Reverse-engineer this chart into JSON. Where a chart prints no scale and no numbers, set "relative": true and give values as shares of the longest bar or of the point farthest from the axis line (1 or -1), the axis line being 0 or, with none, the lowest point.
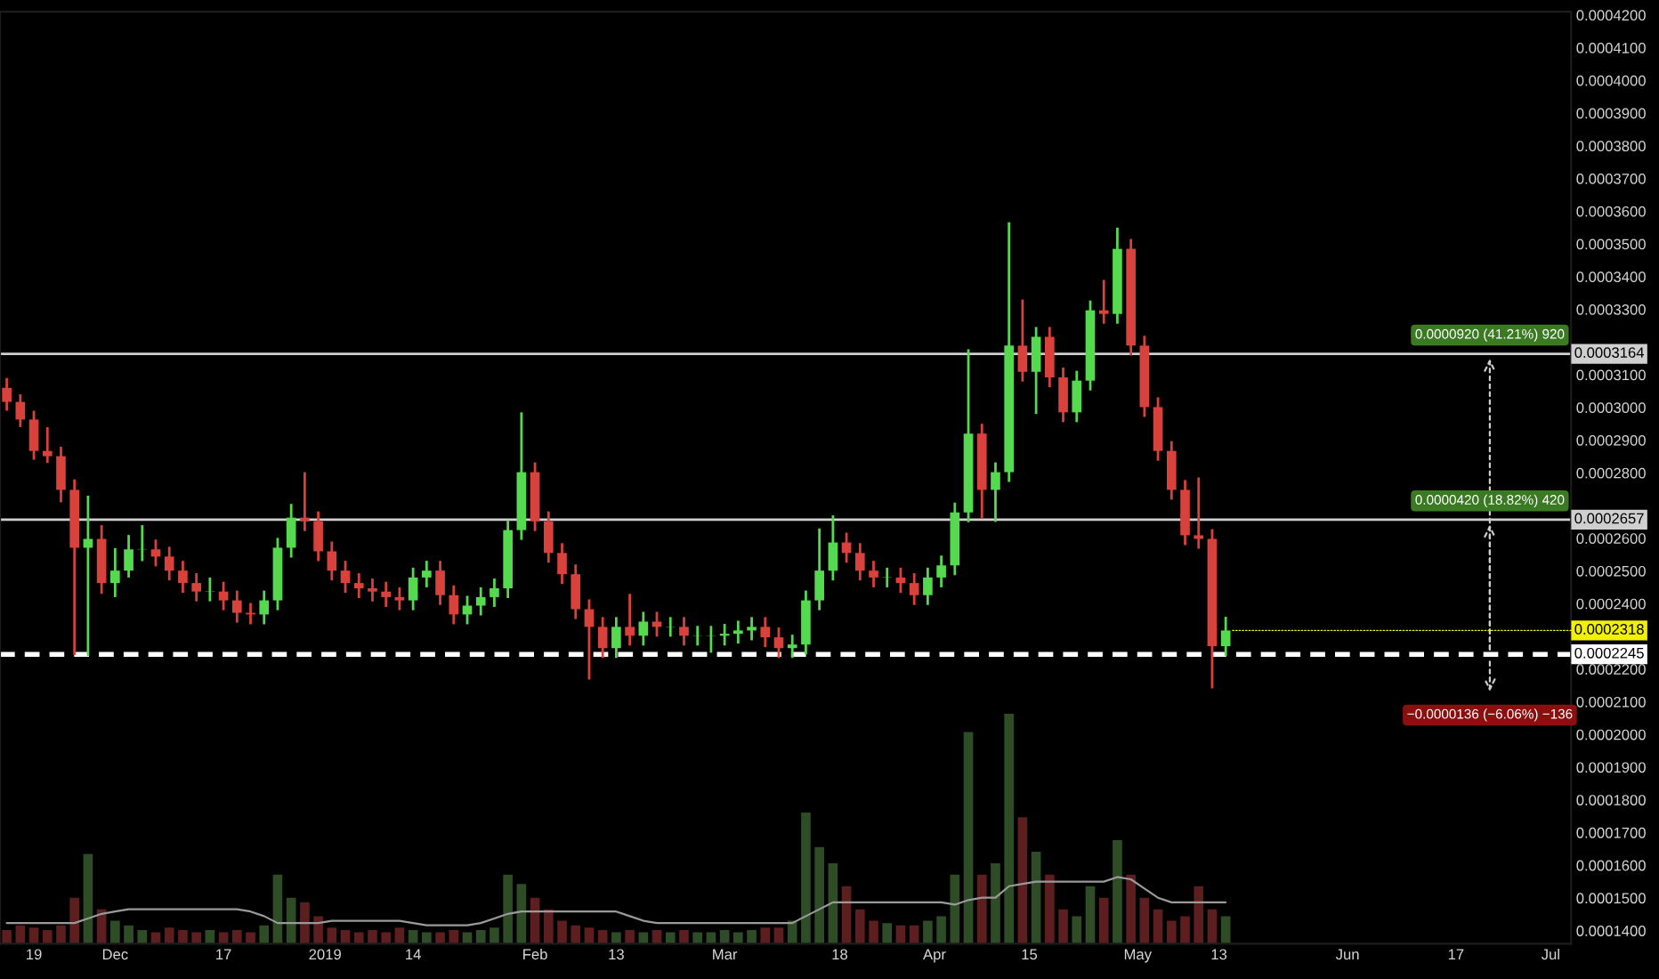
{
  "chart_data": [
    {
      "type": "candlestick",
      "x": [
        "2018-11-15",
        "2018-11-17",
        "2018-11-19",
        "2018-11-21",
        "2018-11-23",
        "2018-11-25",
        "2018-11-27",
        "2018-11-29",
        "2018-12-01",
        "2018-12-03",
        "2018-12-05",
        "2018-12-07",
        "2018-12-09",
        "2018-12-11",
        "2018-12-13",
        "2018-12-15",
        "2018-12-17",
        "2018-12-19",
        "2018-12-21",
        "2018-12-23",
        "2018-12-25",
        "2018-12-27",
        "2018-12-29",
        "2018-12-31",
        "2019-01-02",
        "2019-01-04",
        "2019-01-06",
        "2019-01-08",
        "2019-01-10",
        "2019-01-12",
        "2019-01-14",
        "2019-01-16",
        "2019-01-18",
        "2019-01-20",
        "2019-01-22",
        "2019-01-24",
        "2019-01-26",
        "2019-01-28",
        "2019-01-30",
        "2019-02-01",
        "2019-02-03",
        "2019-02-05",
        "2019-02-07",
        "2019-02-09",
        "2019-02-11",
        "2019-02-13",
        "2019-02-15",
        "2019-02-17",
        "2019-02-19",
        "2019-02-21",
        "2019-02-23",
        "2019-02-25",
        "2019-02-27",
        "2019-03-01",
        "2019-03-03",
        "2019-03-05",
        "2019-03-07",
        "2019-03-09",
        "2019-03-11",
        "2019-03-13",
        "2019-03-15",
        "2019-03-17",
        "2019-03-19",
        "2019-03-21",
        "2019-03-23",
        "2019-03-25",
        "2019-03-27",
        "2019-03-29",
        "2019-03-31",
        "2019-04-02",
        "2019-04-04",
        "2019-04-06",
        "2019-04-08",
        "2019-04-10",
        "2019-04-12",
        "2019-04-14",
        "2019-04-16",
        "2019-04-18",
        "2019-04-20",
        "2019-04-22",
        "2019-04-24",
        "2019-04-26",
        "2019-04-28",
        "2019-04-30",
        "2019-05-02",
        "2019-05-04",
        "2019-05-06",
        "2019-05-08",
        "2019-05-10",
        "2019-05-12",
        "2019-05-14"
      ],
      "ohlc": [
        [
          0.000306,
          0.000309,
          0.000299,
          0.0003017
        ],
        [
          0.0003017,
          0.000304,
          0.000294,
          0.0002963
        ],
        [
          0.0002963,
          0.000299,
          0.000284,
          0.0002867
        ],
        [
          0.0002867,
          0.000294,
          0.000283,
          0.0002851
        ],
        [
          0.0002851,
          0.000288,
          0.000271,
          0.0002748
        ],
        [
          0.0002748,
          0.000278,
          0.0002243,
          0.0002571
        ],
        [
          0.0002571,
          0.000273,
          0.000224,
          0.0002598
        ],
        [
          0.0002598,
          0.000264,
          0.000243,
          0.0002463
        ],
        [
          0.0002463,
          0.000257,
          0.000242,
          0.0002501
        ],
        [
          0.0002501,
          0.000261,
          0.000248,
          0.0002566
        ],
        [
          0.0002566,
          0.000264,
          0.000253,
          0.0002566
        ],
        [
          0.0002566,
          0.0002596,
          0.0002514,
          0.0002544
        ],
        [
          0.0002544,
          0.0002574,
          0.0002471,
          0.0002501
        ],
        [
          0.0002501,
          0.0002531,
          0.0002433,
          0.0002463
        ],
        [
          0.0002463,
          0.0002493,
          0.0002407,
          0.0002437
        ],
        [
          0.0002437,
          0.000248,
          0.0002407,
          0.0002437
        ],
        [
          0.0002437,
          0.0002467,
          0.000238,
          0.000241
        ],
        [
          0.000241,
          0.000244,
          0.0002342,
          0.0002372
        ],
        [
          0.0002372,
          0.0002402,
          0.0002337,
          0.0002367
        ],
        [
          0.0002367,
          0.000244,
          0.0002337,
          0.000241
        ],
        [
          0.000241,
          0.0002601,
          0.000238,
          0.0002571
        ],
        [
          0.0002571,
          0.0002705,
          0.0002541,
          0.0002663
        ],
        [
          0.0002663,
          0.0002802,
          0.0002622,
          0.0002652
        ],
        [
          0.0002652,
          0.0002682,
          0.000253,
          0.000256
        ],
        [
          0.000256,
          0.000259,
          0.0002471,
          0.0002501
        ],
        [
          0.0002501,
          0.0002531,
          0.0002433,
          0.0002463
        ],
        [
          0.0002463,
          0.0002493,
          0.0002417,
          0.0002447
        ],
        [
          0.0002447,
          0.0002477,
          0.0002407,
          0.0002437
        ],
        [
          0.0002437,
          0.0002467,
          0.000239,
          0.000242
        ],
        [
          0.000242,
          0.000245,
          0.000238,
          0.000241
        ],
        [
          0.000241,
          0.000251,
          0.000238,
          0.000248
        ],
        [
          0.000248,
          0.0002531,
          0.000245,
          0.0002501
        ],
        [
          0.0002501,
          0.0002531,
          0.0002396,
          0.0002426
        ],
        [
          0.0002426,
          0.0002456,
          0.0002337,
          0.0002367
        ],
        [
          0.0002367,
          0.0002424,
          0.0002337,
          0.0002394
        ],
        [
          0.0002394,
          0.000245,
          0.0002364,
          0.000242
        ],
        [
          0.000242,
          0.0002477,
          0.000239,
          0.0002447
        ],
        [
          0.0002447,
          0.0002655,
          0.0002417,
          0.0002625
        ],
        [
          0.0002625,
          0.0002985,
          0.0002595,
          0.0002802
        ],
        [
          0.0002802,
          0.0002832,
          0.0002622,
          0.0002652
        ],
        [
          0.0002652,
          0.0002682,
          0.0002525,
          0.0002555
        ],
        [
          0.0002555,
          0.0002585,
          0.000246,
          0.000249
        ],
        [
          0.000249,
          0.000252,
          0.0002353,
          0.0002383
        ],
        [
          0.0002383,
          0.0002413,
          0.0002168,
          0.0002329
        ],
        [
          0.0002329,
          0.0002359,
          0.0002234,
          0.0002264
        ],
        [
          0.0002264,
          0.0002359,
          0.0002234,
          0.0002329
        ],
        [
          0.0002329,
          0.000243,
          0.0002272,
          0.0002302
        ],
        [
          0.0002302,
          0.0002375,
          0.0002272,
          0.0002345
        ],
        [
          0.0002345,
          0.0002375,
          0.0002299,
          0.0002329
        ],
        [
          0.0002329,
          0.0002359,
          0.0002299,
          0.0002329
        ],
        [
          0.0002329,
          0.0002359,
          0.0002272,
          0.0002302
        ],
        [
          0.0002302,
          0.0002332,
          0.0002272,
          0.0002302
        ],
        [
          0.0002302,
          0.0002332,
          0.000225,
          0.0002302
        ],
        [
          0.0002302,
          0.0002338,
          0.0002272,
          0.0002308
        ],
        [
          0.0002308,
          0.0002348,
          0.0002278,
          0.0002318
        ],
        [
          0.0002318,
          0.0002359,
          0.0002288,
          0.0002329
        ],
        [
          0.0002329,
          0.0002359,
          0.0002267,
          0.0002297
        ],
        [
          0.0002297,
          0.0002327,
          0.0002234,
          0.0002264
        ],
        [
          0.0002264,
          0.0002305,
          0.0002234,
          0.0002275
        ],
        [
          0.0002275,
          0.000244,
          0.0002245,
          0.000241
        ],
        [
          0.000241,
          0.000263,
          0.000238,
          0.0002501
        ],
        [
          0.0002501,
          0.000267,
          0.0002471,
          0.0002587
        ],
        [
          0.0002587,
          0.0002617,
          0.0002525,
          0.0002555
        ],
        [
          0.0002555,
          0.0002585,
          0.0002471,
          0.0002501
        ],
        [
          0.0002501,
          0.0002531,
          0.000245,
          0.000248
        ],
        [
          0.000248,
          0.000251,
          0.000245,
          0.000248
        ],
        [
          0.000248,
          0.000251,
          0.0002433,
          0.0002463
        ],
        [
          0.0002463,
          0.0002493,
          0.0002396,
          0.0002426
        ],
        [
          0.0002426,
          0.000251,
          0.0002396,
          0.000248
        ],
        [
          0.000248,
          0.0002547,
          0.000245,
          0.0002517
        ],
        [
          0.0002517,
          0.0002709,
          0.0002487,
          0.0002679
        ],
        [
          0.0002679,
          0.0003178,
          0.0002649,
          0.000292
        ],
        [
          0.000292,
          0.000295,
          0.000266,
          0.0002748
        ],
        [
          0.0002748,
          0.0002832,
          0.000265,
          0.0002802
        ],
        [
          0.0002802,
          0.0003566,
          0.0002772,
          0.0003189
        ],
        [
          0.0003189,
          0.000333,
          0.0003079,
          0.0003109
        ],
        [
          0.0003109,
          0.0003246,
          0.000298,
          0.0003216
        ],
        [
          0.0003216,
          0.0003246,
          0.0003062,
          0.0003092
        ],
        [
          0.0003092,
          0.0003122,
          0.0002955,
          0.0002985
        ],
        [
          0.0002985,
          0.0003112,
          0.0002955,
          0.0003082
        ],
        [
          0.0003082,
          0.0003327,
          0.0003052,
          0.0003297
        ],
        [
          0.0003297,
          0.000339,
          0.0003256,
          0.0003286
        ],
        [
          0.0003286,
          0.000355,
          0.0003256,
          0.0003485
        ],
        [
          0.0003485,
          0.0003515,
          0.0003159,
          0.0003189
        ],
        [
          0.0003189,
          0.0003219,
          0.0002971,
          0.0003001
        ],
        [
          0.0003001,
          0.0003031,
          0.0002837,
          0.0002867
        ],
        [
          0.0002867,
          0.0002897,
          0.0002718,
          0.0002748
        ],
        [
          0.0002748,
          0.0002778,
          0.0002579,
          0.0002609
        ],
        [
          0.0002609,
          0.0002786,
          0.0002568,
          0.0002598
        ],
        [
          0.0002598,
          0.0002628,
          0.0002141,
          0.000227
        ],
        [
          0.000227,
          0.000236,
          0.000224,
          0.0002318
        ]
      ],
      "colors": [
        "#d9423c",
        "#d9423c",
        "#d9423c",
        "#d9423c",
        "#d9423c",
        "#d9423c",
        "#55d94f",
        "#d9423c",
        "#55d94f",
        "#55d94f",
        "#55d94f",
        "#d9423c",
        "#d9423c",
        "#d9423c",
        "#d9423c",
        "#55d94f",
        "#d9423c",
        "#d9423c",
        "#d9423c",
        "#55d94f",
        "#55d94f",
        "#55d94f",
        "#d9423c",
        "#d9423c",
        "#d9423c",
        "#d9423c",
        "#d9423c",
        "#d9423c",
        "#d9423c",
        "#d9423c",
        "#55d94f",
        "#55d94f",
        "#d9423c",
        "#d9423c",
        "#55d94f",
        "#55d94f",
        "#55d94f",
        "#55d94f",
        "#55d94f",
        "#d9423c",
        "#d9423c",
        "#d9423c",
        "#d9423c",
        "#d9423c",
        "#d9423c",
        "#55d94f",
        "#d9423c",
        "#55d94f",
        "#d9423c",
        "#55d94f",
        "#d9423c",
        "#55d94f",
        "#55d94f",
        "#55d94f",
        "#55d94f",
        "#55d94f",
        "#d9423c",
        "#d9423c",
        "#55d94f",
        "#55d94f",
        "#55d94f",
        "#55d94f",
        "#d9423c",
        "#d9423c",
        "#d9423c",
        "#55d94f",
        "#d9423c",
        "#d9423c",
        "#55d94f",
        "#55d94f",
        "#55d94f",
        "#55d94f",
        "#d9423c",
        "#55d94f",
        "#55d94f",
        "#d9423c",
        "#55d94f",
        "#d9423c",
        "#d9423c",
        "#55d94f",
        "#55d94f",
        "#d9423c",
        "#55d94f",
        "#d9423c",
        "#d9423c",
        "#d9423c",
        "#d9423c",
        "#d9423c",
        "#d9423c",
        "#d9423c",
        "#55d94f"
      ],
      "xlim": [
        "2018-11-14",
        "2019-07-04"
      ],
      "xticks": [
        {
          "value": "2018-11-19",
          "label": "19"
        },
        {
          "value": "2018-12-01",
          "label": "Dec"
        },
        {
          "value": "2018-12-17",
          "label": "17"
        },
        {
          "value": "2019-01-01",
          "label": "2019"
        },
        {
          "value": "2019-01-14",
          "label": "14"
        },
        {
          "value": "2019-02-01",
          "label": "Feb"
        },
        {
          "value": "2019-02-13",
          "label": "13"
        },
        {
          "value": "2019-03-01",
          "label": "Mar"
        },
        {
          "value": "2019-03-18",
          "label": "18"
        },
        {
          "value": "2019-04-01",
          "label": "Apr"
        },
        {
          "value": "2019-04-15",
          "label": "15"
        },
        {
          "value": "2019-05-01",
          "label": "May"
        },
        {
          "value": "2019-05-13",
          "label": "13"
        },
        {
          "value": "2019-06-01",
          "label": "Jun"
        },
        {
          "value": "2019-06-17",
          "label": "17"
        },
        {
          "value": "2019-07-01",
          "label": "Jul"
        }
      ],
      "ylim": [
        0.000136,
        0.000421
      ],
      "yticks": [
        {
          "value": 0.00014,
          "label": "0.0001400"
        },
        {
          "value": 0.00015,
          "label": "0.0001500"
        },
        {
          "value": 0.00016,
          "label": "0.0001600"
        },
        {
          "value": 0.00017,
          "label": "0.0001700"
        },
        {
          "value": 0.00018,
          "label": "0.0001800"
        },
        {
          "value": 0.00019,
          "label": "0.0001900"
        },
        {
          "value": 0.0002,
          "label": "0.0002000"
        },
        {
          "value": 0.00021,
          "label": "0.0002100"
        },
        {
          "value": 0.00022,
          "label": "0.0002200"
        },
        {
          "value": 0.00024,
          "label": "0.0002400"
        },
        {
          "value": 0.00025,
          "label": "0.0002500"
        },
        {
          "value": 0.00026,
          "label": "0.0002600"
        },
        {
          "value": 0.00028,
          "label": "0.0002800"
        },
        {
          "value": 0.00029,
          "label": "0.0002900"
        },
        {
          "value": 0.0003,
          "label": "0.0003000"
        },
        {
          "value": 0.00031,
          "label": "0.0003100"
        },
        {
          "value": 0.00033,
          "label": "0.0003300"
        },
        {
          "value": 0.00034,
          "label": "0.0003400"
        },
        {
          "value": 0.00035,
          "label": "0.0003500"
        },
        {
          "value": 0.00036,
          "label": "0.0003600"
        },
        {
          "value": 0.00037,
          "label": "0.0003700"
        },
        {
          "value": 0.00038,
          "label": "0.0003800"
        },
        {
          "value": 0.00039,
          "label": "0.0003900"
        },
        {
          "value": 0.0004,
          "label": "0.0004000"
        },
        {
          "value": 0.00041,
          "label": "0.0004100"
        },
        {
          "value": 0.00042,
          "label": "0.0004200"
        }
      ],
      "ref_lines": [
        {
          "axis": "y",
          "value": 0.0003164,
          "label": "0.0003164",
          "color": "#cfcfcf",
          "line_style": "solid"
        },
        {
          "axis": "y",
          "value": 0.0002657,
          "label": "0.0002657",
          "color": "#cfcfcf",
          "line_style": "solid"
        },
        {
          "axis": "y",
          "value": 0.0002245,
          "label": "0.0002245",
          "color": "#ffffff",
          "line_style": "dashed"
        }
      ],
      "annotations": [
        {
          "text": "0.0000920 (41.21%) 920",
          "x": "2019-06-22",
          "y": 0.0003164
        },
        {
          "text": "0.0000420 (18.82%) 420",
          "x": "2019-06-22",
          "y": 0.0002657
        },
        "−0.0000136 (−6.06%) −136",
        {
          "text": "0.0002318",
          "x": "2019-05-14",
          "y": 0.0002318
        }
      ],
      "grid": false
    },
    {
      "type": "bar",
      "relative": true,
      "tick_labels": false,
      "xlim": [
        "2018-11-14",
        "2019-07-04"
      ],
      "x": [
        "2018-11-15",
        "2018-11-17",
        "2018-11-19",
        "2018-11-21",
        "2018-11-23",
        "2018-11-25",
        "2018-11-27",
        "2018-11-29",
        "2018-12-01",
        "2018-12-03",
        "2018-12-05",
        "2018-12-07",
        "2018-12-09",
        "2018-12-11",
        "2018-12-13",
        "2018-12-15",
        "2018-12-17",
        "2018-12-19",
        "2018-12-21",
        "2018-12-23",
        "2018-12-25",
        "2018-12-27",
        "2018-12-29",
        "2018-12-31",
        "2019-01-02",
        "2019-01-04",
        "2019-01-06",
        "2019-01-08",
        "2019-01-10",
        "2019-01-12",
        "2019-01-14",
        "2019-01-16",
        "2019-01-18",
        "2019-01-20",
        "2019-01-22",
        "2019-01-24",
        "2019-01-26",
        "2019-01-28",
        "2019-01-30",
        "2019-02-01",
        "2019-02-03",
        "2019-02-05",
        "2019-02-07",
        "2019-02-09",
        "2019-02-11",
        "2019-02-13",
        "2019-02-15",
        "2019-02-17",
        "2019-02-19",
        "2019-02-21",
        "2019-02-23",
        "2019-02-25",
        "2019-02-27",
        "2019-03-01",
        "2019-03-03",
        "2019-03-05",
        "2019-03-07",
        "2019-03-09",
        "2019-03-11",
        "2019-03-13",
        "2019-03-15",
        "2019-03-17",
        "2019-03-19",
        "2019-03-21",
        "2019-03-23",
        "2019-03-25",
        "2019-03-27",
        "2019-03-29",
        "2019-03-31",
        "2019-04-02",
        "2019-04-04",
        "2019-04-06",
        "2019-04-08",
        "2019-04-10",
        "2019-04-12",
        "2019-04-14",
        "2019-04-16",
        "2019-04-18",
        "2019-04-20",
        "2019-04-22",
        "2019-04-24",
        "2019-04-26",
        "2019-04-28",
        "2019-04-30",
        "2019-05-02",
        "2019-05-04",
        "2019-05-06",
        "2019-05-08",
        "2019-05-10",
        "2019-05-12",
        "2019-05-14"
      ],
      "series": [
        {
          "type": "bar",
          "values": [
            0.06,
            0.08,
            0.07,
            0.06,
            0.08,
            0.2,
            0.39,
            0.15,
            0.1,
            0.08,
            0.06,
            0.05,
            0.07,
            0.06,
            0.05,
            0.06,
            0.05,
            0.06,
            0.05,
            0.08,
            0.3,
            0.2,
            0.18,
            0.12,
            0.07,
            0.06,
            0.05,
            0.06,
            0.05,
            0.07,
            0.06,
            0.05,
            0.05,
            0.06,
            0.05,
            0.06,
            0.07,
            0.3,
            0.26,
            0.2,
            0.15,
            0.1,
            0.08,
            0.07,
            0.06,
            0.05,
            0.06,
            0.05,
            0.06,
            0.05,
            0.06,
            0.05,
            0.05,
            0.06,
            0.05,
            0.06,
            0.07,
            0.07,
            0.1,
            0.57,
            0.42,
            0.35,
            0.25,
            0.15,
            0.1,
            0.09,
            0.08,
            0.08,
            0.1,
            0.12,
            0.3,
            0.92,
            0.3,
            0.35,
            1.0,
            0.55,
            0.4,
            0.3,
            0.15,
            0.12,
            0.25,
            0.2,
            0.45,
            0.3,
            0.2,
            0.15,
            0.1,
            0.12,
            0.25,
            0.15,
            0.12
          ],
          "colors": [
            "#5c1e1e",
            "#5c1e1e",
            "#5c1e1e",
            "#5c1e1e",
            "#5c1e1e",
            "#5c1e1e",
            "#2e4d27",
            "#5c1e1e",
            "#2e4d27",
            "#2e4d27",
            "#2e4d27",
            "#5c1e1e",
            "#5c1e1e",
            "#5c1e1e",
            "#5c1e1e",
            "#2e4d27",
            "#5c1e1e",
            "#5c1e1e",
            "#5c1e1e",
            "#2e4d27",
            "#2e4d27",
            "#2e4d27",
            "#5c1e1e",
            "#5c1e1e",
            "#5c1e1e",
            "#5c1e1e",
            "#5c1e1e",
            "#5c1e1e",
            "#5c1e1e",
            "#5c1e1e",
            "#2e4d27",
            "#2e4d27",
            "#5c1e1e",
            "#5c1e1e",
            "#2e4d27",
            "#2e4d27",
            "#2e4d27",
            "#2e4d27",
            "#2e4d27",
            "#5c1e1e",
            "#5c1e1e",
            "#5c1e1e",
            "#5c1e1e",
            "#5c1e1e",
            "#5c1e1e",
            "#2e4d27",
            "#5c1e1e",
            "#2e4d27",
            "#5c1e1e",
            "#2e4d27",
            "#5c1e1e",
            "#2e4d27",
            "#2e4d27",
            "#2e4d27",
            "#2e4d27",
            "#2e4d27",
            "#5c1e1e",
            "#5c1e1e",
            "#2e4d27",
            "#2e4d27",
            "#2e4d27",
            "#2e4d27",
            "#5c1e1e",
            "#5c1e1e",
            "#5c1e1e",
            "#2e4d27",
            "#5c1e1e",
            "#5c1e1e",
            "#2e4d27",
            "#2e4d27",
            "#2e4d27",
            "#2e4d27",
            "#5c1e1e",
            "#2e4d27",
            "#2e4d27",
            "#5c1e1e",
            "#2e4d27",
            "#5c1e1e",
            "#5c1e1e",
            "#2e4d27",
            "#2e4d27",
            "#5c1e1e",
            "#2e4d27",
            "#5c1e1e",
            "#5c1e1e",
            "#5c1e1e",
            "#5c1e1e",
            "#5c1e1e",
            "#5c1e1e",
            "#5c1e1e",
            "#2e4d27"
          ]
        },
        {
          "type": "line",
          "color": "#9a9a9a",
          "values": [
            0.09,
            0.09,
            0.09,
            0.09,
            0.09,
            0.09,
            0.11,
            0.13,
            0.14,
            0.15,
            0.15,
            0.15,
            0.15,
            0.15,
            0.15,
            0.15,
            0.15,
            0.15,
            0.14,
            0.12,
            0.09,
            0.09,
            0.09,
            0.09,
            0.1,
            0.1,
            0.1,
            0.1,
            0.1,
            0.1,
            0.09,
            0.08,
            0.08,
            0.08,
            0.08,
            0.09,
            0.11,
            0.13,
            0.14,
            0.14,
            0.14,
            0.14,
            0.14,
            0.14,
            0.14,
            0.14,
            0.12,
            0.1,
            0.09,
            0.09,
            0.09,
            0.09,
            0.09,
            0.09,
            0.09,
            0.09,
            0.09,
            0.09,
            0.09,
            0.12,
            0.15,
            0.18,
            0.18,
            0.18,
            0.18,
            0.18,
            0.18,
            0.18,
            0.18,
            0.18,
            0.17,
            0.19,
            0.2,
            0.2,
            0.25,
            0.26,
            0.27,
            0.27,
            0.27,
            0.27,
            0.27,
            0.27,
            0.29,
            0.28,
            0.24,
            0.2,
            0.18,
            0.18,
            0.18,
            0.18,
            0.18
          ]
        }
      ]
    }
  ]
}
